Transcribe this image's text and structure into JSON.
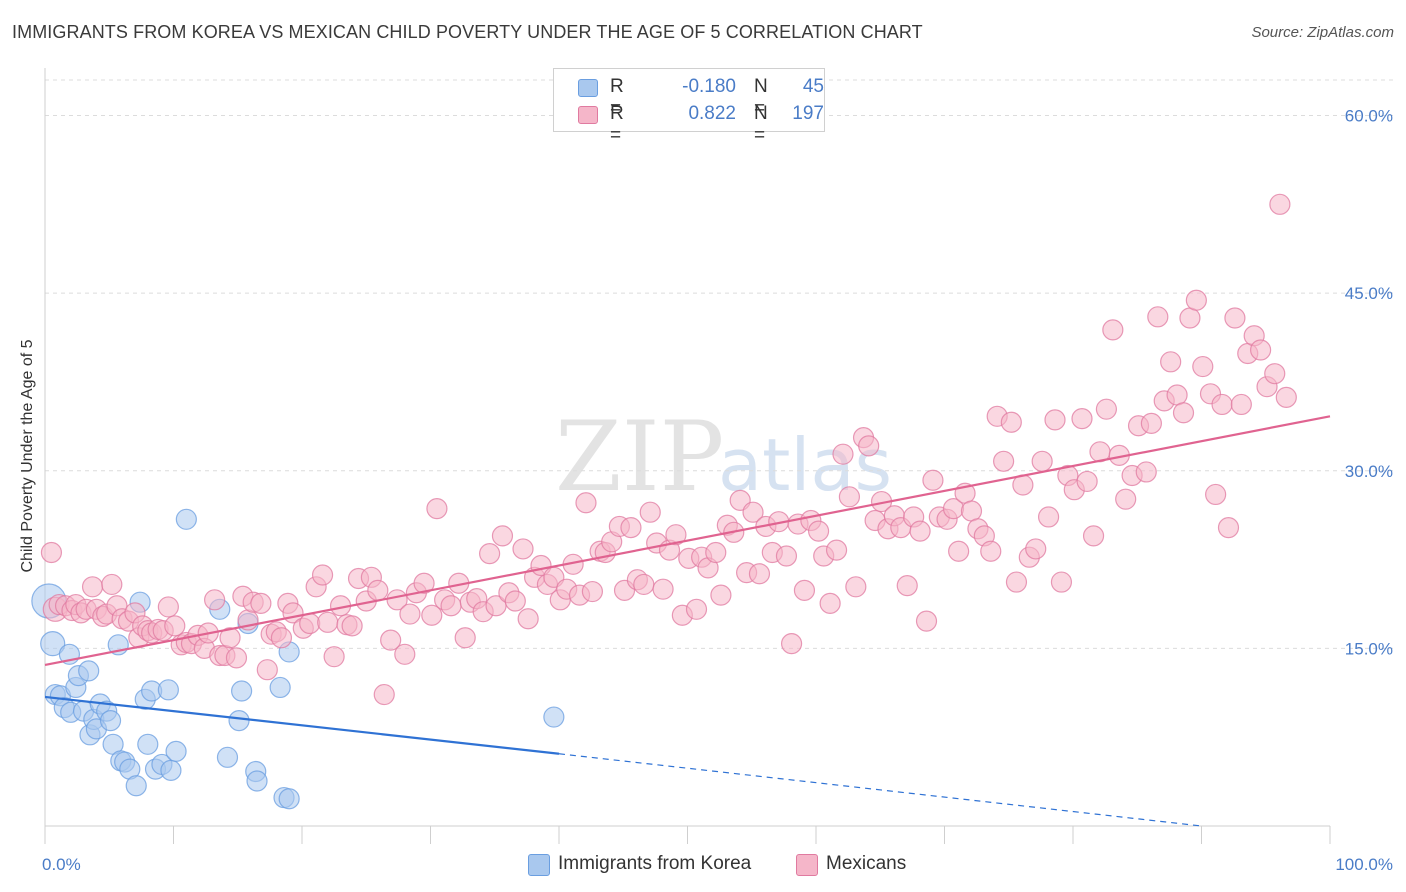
{
  "header": {
    "title": "IMMIGRANTS FROM KOREA VS MEXICAN CHILD POVERTY UNDER THE AGE OF 5 CORRELATION CHART",
    "source": "Source: ZipAtlas.com"
  },
  "watermark": {
    "zip": "ZIP",
    "atlas": "atlas"
  },
  "legend": {
    "rows": [
      {
        "r_label": "R =",
        "r_value": "-0.180",
        "n_label": "N =",
        "n_value": "45",
        "color": "#a9c8ee"
      },
      {
        "r_label": "R =",
        "r_value": "0.822",
        "n_label": "N =",
        "n_value": "197",
        "color": "#f5b6c9"
      }
    ]
  },
  "bottom_legend": {
    "korea": "Immigrants from Korea",
    "mexicans": "Mexicans"
  },
  "chart_data": {
    "type": "scatter",
    "title": "IMMIGRANTS FROM KOREA VS MEXICAN CHILD POVERTY UNDER THE AGE OF 5 CORRELATION CHART",
    "xlabel": "",
    "ylabel": "Child Poverty Under the Age of 5",
    "xlim": [
      0,
      100
    ],
    "ylim": [
      0,
      63
    ],
    "x_tick_labels": [
      "0.0%",
      "100.0%"
    ],
    "y_ticks": [
      15,
      30,
      45,
      60
    ],
    "y_tick_labels": [
      "15.0%",
      "30.0%",
      "45.0%",
      "60.0%"
    ],
    "grid": true,
    "legend_position": "top-center",
    "series": [
      {
        "name": "Immigrants from Korea",
        "color": "#6a9ee0",
        "fill": "#a9c8ee",
        "trend": {
          "x": [
            0,
            40
          ],
          "y": [
            10.9,
            6.1
          ],
          "dashed_to": [
            90,
            0.0
          ]
        },
        "points": [
          [
            0.3,
            19.0
          ],
          [
            0.6,
            15.4
          ],
          [
            0.8,
            11.1
          ],
          [
            1.2,
            11.0
          ],
          [
            1.5,
            10.0
          ],
          [
            1.9,
            14.5
          ],
          [
            2.0,
            9.6
          ],
          [
            2.4,
            11.7
          ],
          [
            2.6,
            12.7
          ],
          [
            3.0,
            9.7
          ],
          [
            3.4,
            13.1
          ],
          [
            3.5,
            7.7
          ],
          [
            3.8,
            9.0
          ],
          [
            4.0,
            8.2
          ],
          [
            4.3,
            10.3
          ],
          [
            4.8,
            9.7
          ],
          [
            5.1,
            8.9
          ],
          [
            5.3,
            6.9
          ],
          [
            5.7,
            15.3
          ],
          [
            5.9,
            5.5
          ],
          [
            6.2,
            5.4
          ],
          [
            6.6,
            4.8
          ],
          [
            7.1,
            3.4
          ],
          [
            7.4,
            18.9
          ],
          [
            7.8,
            10.7
          ],
          [
            8.0,
            6.9
          ],
          [
            8.3,
            11.4
          ],
          [
            8.6,
            4.8
          ],
          [
            9.1,
            5.2
          ],
          [
            9.6,
            11.5
          ],
          [
            9.8,
            4.7
          ],
          [
            10.2,
            6.3
          ],
          [
            11.0,
            25.9
          ],
          [
            13.6,
            18.3
          ],
          [
            14.2,
            5.8
          ],
          [
            15.3,
            11.4
          ],
          [
            15.1,
            8.9
          ],
          [
            15.8,
            17.1
          ],
          [
            16.4,
            4.6
          ],
          [
            16.5,
            3.8
          ],
          [
            18.3,
            11.7
          ],
          [
            18.6,
            2.4
          ],
          [
            19.0,
            14.7
          ],
          [
            19.0,
            2.3
          ],
          [
            39.6,
            9.2
          ]
        ],
        "sizes_note": "one large point at x≈0.3 and x≈0.6"
      },
      {
        "name": "Mexicans",
        "color": "#e07aa0",
        "fill": "#f5b6c9",
        "trend": {
          "x": [
            0,
            100
          ],
          "y": [
            13.6,
            34.6
          ]
        },
        "points": [
          [
            0.5,
            23.1
          ],
          [
            0.8,
            18.3
          ],
          [
            1.1,
            18.7
          ],
          [
            1.6,
            18.6
          ],
          [
            2.1,
            18.2
          ],
          [
            2.4,
            18.7
          ],
          [
            2.8,
            18.0
          ],
          [
            3.2,
            18.3
          ],
          [
            3.7,
            20.2
          ],
          [
            4.0,
            18.3
          ],
          [
            4.5,
            17.7
          ],
          [
            4.8,
            17.9
          ],
          [
            5.2,
            20.4
          ],
          [
            5.6,
            18.6
          ],
          [
            6.0,
            17.5
          ],
          [
            6.5,
            17.3
          ],
          [
            7.0,
            18.0
          ],
          [
            7.3,
            15.9
          ],
          [
            7.6,
            16.9
          ],
          [
            8.0,
            16.5
          ],
          [
            8.3,
            16.3
          ],
          [
            8.8,
            16.6
          ],
          [
            9.2,
            16.5
          ],
          [
            9.6,
            18.5
          ],
          [
            10.1,
            16.9
          ],
          [
            10.6,
            15.3
          ],
          [
            11.0,
            15.5
          ],
          [
            11.4,
            15.4
          ],
          [
            11.9,
            16.1
          ],
          [
            12.4,
            15.0
          ],
          [
            12.7,
            16.3
          ],
          [
            13.2,
            19.1
          ],
          [
            13.6,
            14.4
          ],
          [
            14.0,
            14.4
          ],
          [
            14.4,
            15.9
          ],
          [
            14.9,
            14.2
          ],
          [
            15.4,
            19.4
          ],
          [
            15.8,
            17.4
          ],
          [
            16.2,
            18.9
          ],
          [
            16.8,
            18.8
          ],
          [
            17.3,
            13.2
          ],
          [
            17.6,
            16.2
          ],
          [
            18.0,
            16.4
          ],
          [
            18.4,
            15.9
          ],
          [
            18.9,
            18.8
          ],
          [
            19.3,
            18.0
          ],
          [
            20.1,
            16.7
          ],
          [
            20.6,
            17.1
          ],
          [
            21.1,
            20.2
          ],
          [
            21.6,
            21.2
          ],
          [
            22.0,
            17.2
          ],
          [
            22.5,
            14.3
          ],
          [
            23.0,
            18.6
          ],
          [
            23.5,
            17.0
          ],
          [
            23.9,
            16.9
          ],
          [
            24.4,
            20.9
          ],
          [
            25.0,
            19.0
          ],
          [
            25.4,
            21.0
          ],
          [
            25.9,
            19.9
          ],
          [
            26.4,
            11.1
          ],
          [
            26.9,
            15.7
          ],
          [
            27.4,
            19.1
          ],
          [
            28.0,
            14.5
          ],
          [
            28.4,
            17.9
          ],
          [
            28.9,
            19.7
          ],
          [
            29.5,
            20.5
          ],
          [
            30.1,
            17.8
          ],
          [
            30.5,
            26.8
          ],
          [
            31.1,
            19.1
          ],
          [
            31.6,
            18.6
          ],
          [
            32.2,
            20.5
          ],
          [
            32.7,
            15.9
          ],
          [
            33.1,
            18.9
          ],
          [
            33.6,
            19.2
          ],
          [
            34.1,
            18.1
          ],
          [
            34.6,
            23.0
          ],
          [
            35.1,
            18.6
          ],
          [
            35.6,
            24.5
          ],
          [
            36.1,
            19.7
          ],
          [
            36.6,
            19.0
          ],
          [
            37.2,
            23.4
          ],
          [
            37.6,
            17.5
          ],
          [
            38.1,
            21.0
          ],
          [
            38.6,
            22.0
          ],
          [
            39.1,
            20.4
          ],
          [
            39.6,
            21.0
          ],
          [
            40.1,
            19.1
          ],
          [
            40.6,
            20.0
          ],
          [
            41.1,
            22.1
          ],
          [
            41.6,
            19.5
          ],
          [
            42.1,
            27.3
          ],
          [
            42.6,
            19.8
          ],
          [
            43.2,
            23.2
          ],
          [
            43.6,
            23.1
          ],
          [
            44.1,
            24.0
          ],
          [
            44.7,
            25.3
          ],
          [
            45.1,
            19.9
          ],
          [
            45.6,
            25.2
          ],
          [
            46.1,
            20.8
          ],
          [
            46.6,
            20.4
          ],
          [
            47.1,
            26.5
          ],
          [
            47.6,
            23.9
          ],
          [
            48.1,
            20.0
          ],
          [
            48.6,
            23.3
          ],
          [
            49.1,
            24.6
          ],
          [
            49.6,
            17.8
          ],
          [
            50.1,
            22.6
          ],
          [
            50.7,
            18.3
          ],
          [
            51.1,
            22.7
          ],
          [
            51.6,
            21.8
          ],
          [
            52.2,
            23.1
          ],
          [
            52.6,
            19.5
          ],
          [
            53.1,
            25.4
          ],
          [
            53.6,
            24.8
          ],
          [
            54.1,
            27.5
          ],
          [
            54.6,
            21.4
          ],
          [
            55.1,
            26.5
          ],
          [
            55.6,
            21.3
          ],
          [
            56.1,
            25.3
          ],
          [
            56.6,
            23.1
          ],
          [
            57.1,
            25.7
          ],
          [
            57.7,
            22.8
          ],
          [
            58.1,
            15.4
          ],
          [
            58.6,
            25.5
          ],
          [
            59.1,
            19.9
          ],
          [
            59.6,
            25.8
          ],
          [
            60.2,
            24.9
          ],
          [
            60.6,
            22.8
          ],
          [
            61.1,
            18.8
          ],
          [
            61.6,
            23.3
          ],
          [
            62.1,
            31.4
          ],
          [
            62.6,
            27.8
          ],
          [
            63.1,
            20.2
          ],
          [
            63.7,
            32.8
          ],
          [
            64.1,
            32.1
          ],
          [
            64.6,
            25.8
          ],
          [
            65.1,
            27.4
          ],
          [
            65.6,
            25.1
          ],
          [
            66.1,
            26.2
          ],
          [
            66.6,
            25.2
          ],
          [
            67.1,
            20.3
          ],
          [
            67.6,
            26.1
          ],
          [
            68.1,
            24.9
          ],
          [
            68.6,
            17.3
          ],
          [
            69.1,
            29.2
          ],
          [
            69.6,
            26.1
          ],
          [
            70.2,
            25.9
          ],
          [
            70.7,
            26.8
          ],
          [
            71.1,
            23.2
          ],
          [
            71.6,
            28.1
          ],
          [
            72.1,
            26.6
          ],
          [
            72.6,
            25.1
          ],
          [
            73.1,
            24.5
          ],
          [
            73.6,
            23.2
          ],
          [
            74.1,
            34.6
          ],
          [
            74.6,
            30.8
          ],
          [
            75.2,
            34.1
          ],
          [
            75.6,
            20.6
          ],
          [
            76.1,
            28.8
          ],
          [
            76.6,
            22.7
          ],
          [
            77.1,
            23.4
          ],
          [
            77.6,
            30.8
          ],
          [
            78.1,
            26.1
          ],
          [
            78.6,
            34.3
          ],
          [
            79.1,
            20.6
          ],
          [
            79.6,
            29.6
          ],
          [
            80.1,
            28.4
          ],
          [
            80.7,
            34.4
          ],
          [
            81.1,
            29.1
          ],
          [
            81.6,
            24.5
          ],
          [
            82.1,
            31.6
          ],
          [
            82.6,
            35.2
          ],
          [
            83.1,
            41.9
          ],
          [
            83.6,
            31.3
          ],
          [
            84.1,
            27.6
          ],
          [
            84.6,
            29.6
          ],
          [
            85.1,
            33.8
          ],
          [
            85.7,
            29.9
          ],
          [
            86.1,
            34.0
          ],
          [
            86.6,
            43.0
          ],
          [
            87.1,
            35.9
          ],
          [
            87.6,
            39.2
          ],
          [
            88.1,
            36.4
          ],
          [
            88.6,
            34.9
          ],
          [
            89.1,
            42.9
          ],
          [
            89.6,
            44.4
          ],
          [
            90.1,
            38.8
          ],
          [
            90.7,
            36.5
          ],
          [
            91.1,
            28.0
          ],
          [
            91.6,
            35.6
          ],
          [
            92.1,
            25.2
          ],
          [
            92.6,
            42.9
          ],
          [
            93.1,
            35.6
          ],
          [
            93.6,
            39.9
          ],
          [
            94.1,
            41.4
          ],
          [
            94.6,
            40.2
          ],
          [
            95.1,
            37.1
          ],
          [
            95.7,
            38.2
          ],
          [
            96.1,
            52.5
          ],
          [
            96.6,
            36.2
          ]
        ],
        "sizes_note": "one larger point at x≈0.8, y≈18.3"
      }
    ]
  }
}
